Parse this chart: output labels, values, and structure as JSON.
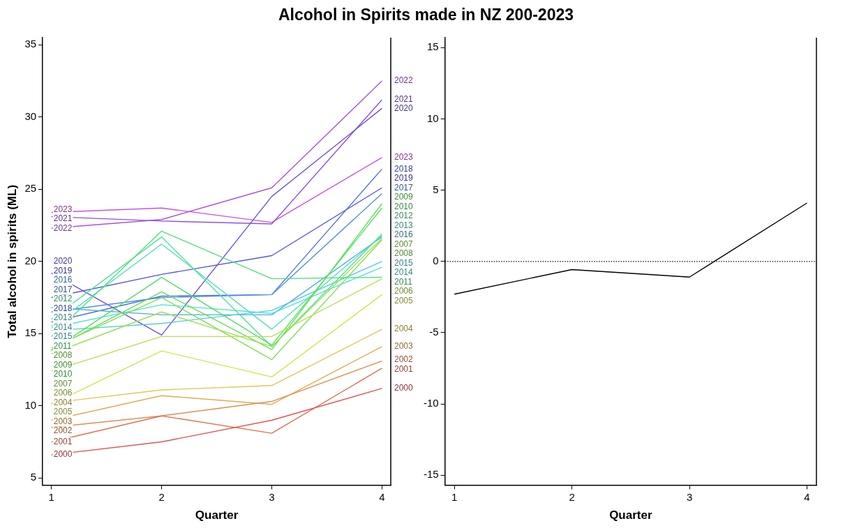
{
  "chart_data": [
    {
      "type": "line",
      "title": "Alcohol in Spirits made in NZ 200-2023",
      "xlabel": "Quarter",
      "ylabel": "Total alcohol in spirits (ML)",
      "x": [
        1,
        2,
        3,
        4
      ],
      "xlim": [
        0.92,
        4.08
      ],
      "xticks": [
        1,
        2,
        3,
        4
      ],
      "ylim": [
        4.5,
        35.5
      ],
      "yticks": [
        5,
        10,
        15,
        20,
        25,
        30,
        35
      ],
      "legend": false,
      "series": [
        {
          "name": "2000",
          "color": "#e05252",
          "values": [
            6.6,
            7.5,
            9.0,
            11.2
          ]
        },
        {
          "name": "2001",
          "color": "#e07052",
          "values": [
            7.5,
            9.3,
            8.1,
            12.6
          ]
        },
        {
          "name": "2002",
          "color": "#e08d52",
          "values": [
            8.5,
            9.3,
            10.3,
            13.1
          ]
        },
        {
          "name": "2003",
          "color": "#e0ac52",
          "values": [
            9.0,
            10.7,
            10.1,
            14.1
          ]
        },
        {
          "name": "2004",
          "color": "#e0c952",
          "values": [
            10.2,
            11.1,
            11.4,
            15.3
          ]
        },
        {
          "name": "2005",
          "color": "#d9e052",
          "values": [
            10.1,
            13.8,
            12.0,
            17.7
          ]
        },
        {
          "name": "2006",
          "color": "#bae052",
          "values": [
            12.4,
            14.8,
            14.8,
            18.8
          ]
        },
        {
          "name": "2007",
          "color": "#9ee052",
          "values": [
            13.6,
            16.5,
            14.1,
            21.6
          ]
        },
        {
          "name": "2008",
          "color": "#7fe052",
          "values": [
            14.0,
            17.5,
            13.2,
            21.5
          ]
        },
        {
          "name": "2009",
          "color": "#62e052",
          "values": [
            13.9,
            17.9,
            13.9,
            24.0
          ]
        },
        {
          "name": "2010",
          "color": "#52e060",
          "values": [
            13.8,
            18.9,
            14.2,
            23.7
          ]
        },
        {
          "name": "2011",
          "color": "#52e07f",
          "values": [
            14.8,
            22.1,
            18.8,
            18.9
          ]
        },
        {
          "name": "2012",
          "color": "#52e09b",
          "values": [
            16.0,
            21.7,
            14.1,
            21.9
          ]
        },
        {
          "name": "2013",
          "color": "#52e0ba",
          "values": [
            15.5,
            21.2,
            15.3,
            21.8
          ]
        },
        {
          "name": "2014",
          "color": "#52e0d7",
          "values": [
            15.4,
            17.0,
            16.4,
            19.6
          ]
        },
        {
          "name": "2015",
          "color": "#52cbe0",
          "values": [
            15.2,
            15.7,
            16.6,
            20.0
          ]
        },
        {
          "name": "2016",
          "color": "#52ace0",
          "values": [
            16.8,
            16.3,
            16.3,
            21.7
          ]
        },
        {
          "name": "2017",
          "color": "#528fe0",
          "values": [
            16.5,
            17.5,
            17.7,
            24.7
          ]
        },
        {
          "name": "2018",
          "color": "#5270e0",
          "values": [
            15.8,
            17.6,
            17.7,
            26.4
          ]
        },
        {
          "name": "2019",
          "color": "#5254e0",
          "values": [
            17.5,
            19.1,
            20.4,
            25.1
          ]
        },
        {
          "name": "2020",
          "color": "#6e52e0",
          "values": [
            19.2,
            14.9,
            24.5,
            30.6
          ]
        },
        {
          "name": "2021",
          "color": "#8d52e0",
          "values": [
            23.1,
            22.8,
            22.6,
            31.2
          ]
        },
        {
          "name": "2022",
          "color": "#aa52e0",
          "values": [
            22.3,
            22.9,
            25.1,
            32.5
          ]
        },
        {
          "name": "2023",
          "color": "#c952e0",
          "values": [
            23.4,
            23.7,
            22.7,
            27.2
          ]
        }
      ]
    },
    {
      "type": "line",
      "xlabel": "Quarter",
      "x": [
        1,
        2,
        3,
        4
      ],
      "xlim": [
        0.92,
        4.08
      ],
      "xticks": [
        1,
        2,
        3,
        4
      ],
      "ylim": [
        -15.7,
        15.7
      ],
      "yticks": [
        -15,
        -10,
        -5,
        0,
        5,
        10,
        15
      ],
      "legend": false,
      "ref_lines": [
        {
          "axis": "y",
          "value": 0,
          "color": "#000000",
          "line_style": "dotted"
        }
      ],
      "series": [
        {
          "color": "#000000",
          "values": [
            -2.3,
            -0.57,
            -1.1,
            4.1
          ]
        }
      ]
    }
  ]
}
